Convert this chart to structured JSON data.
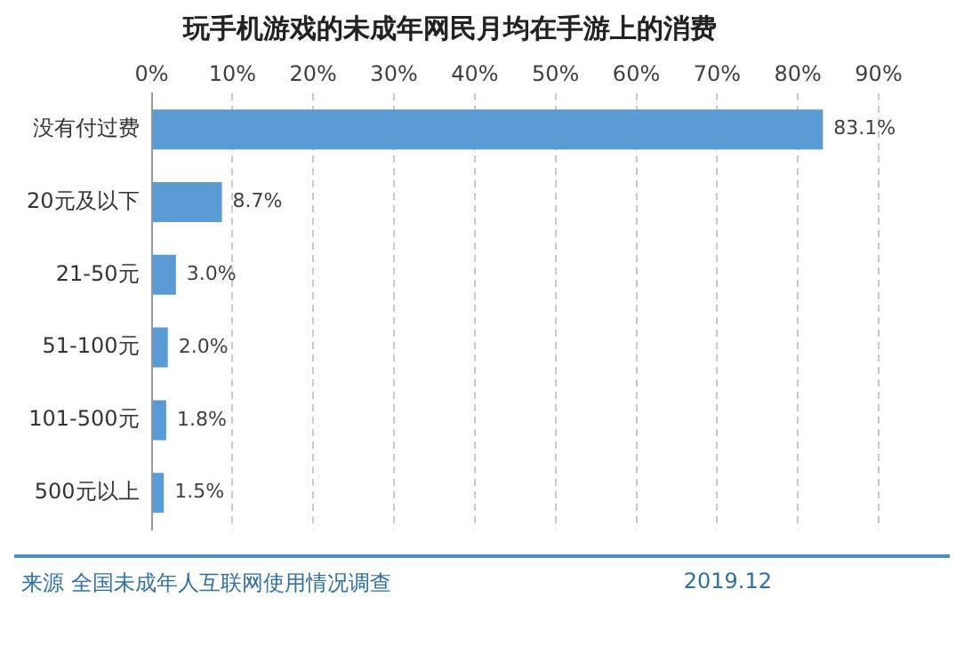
{
  "chart_data": {
    "type": "bar",
    "orientation": "horizontal",
    "title": "玩手机游戏的未成年网民月均在手游上的消费",
    "categories": [
      "没有付过费",
      "20元及以下",
      "21-50元",
      "51-100元",
      "101-500元",
      "500元以上"
    ],
    "values": [
      83.1,
      8.7,
      3.0,
      2.0,
      1.8,
      1.5
    ],
    "value_labels": [
      "83.1%",
      "8.7%",
      "3.0%",
      "2.0%",
      "1.8%",
      "1.5%"
    ],
    "color": "#5b9bd5",
    "xlim": [
      0,
      90
    ],
    "xticks": [
      {
        "value": 0,
        "label": "0%"
      },
      {
        "value": 10,
        "label": "10%"
      },
      {
        "value": 20,
        "label": "20%"
      },
      {
        "value": 30,
        "label": "30%"
      },
      {
        "value": 40,
        "label": "40%"
      },
      {
        "value": 50,
        "label": "50%"
      },
      {
        "value": 60,
        "label": "60%"
      },
      {
        "value": 70,
        "label": "70%"
      },
      {
        "value": 80,
        "label": "80%"
      },
      {
        "value": 90,
        "label": "90%"
      }
    ],
    "grid": "x",
    "legend": false,
    "annotations": [
      "来源 全国未成年人互联网使用情况调查",
      "2019.12"
    ]
  }
}
